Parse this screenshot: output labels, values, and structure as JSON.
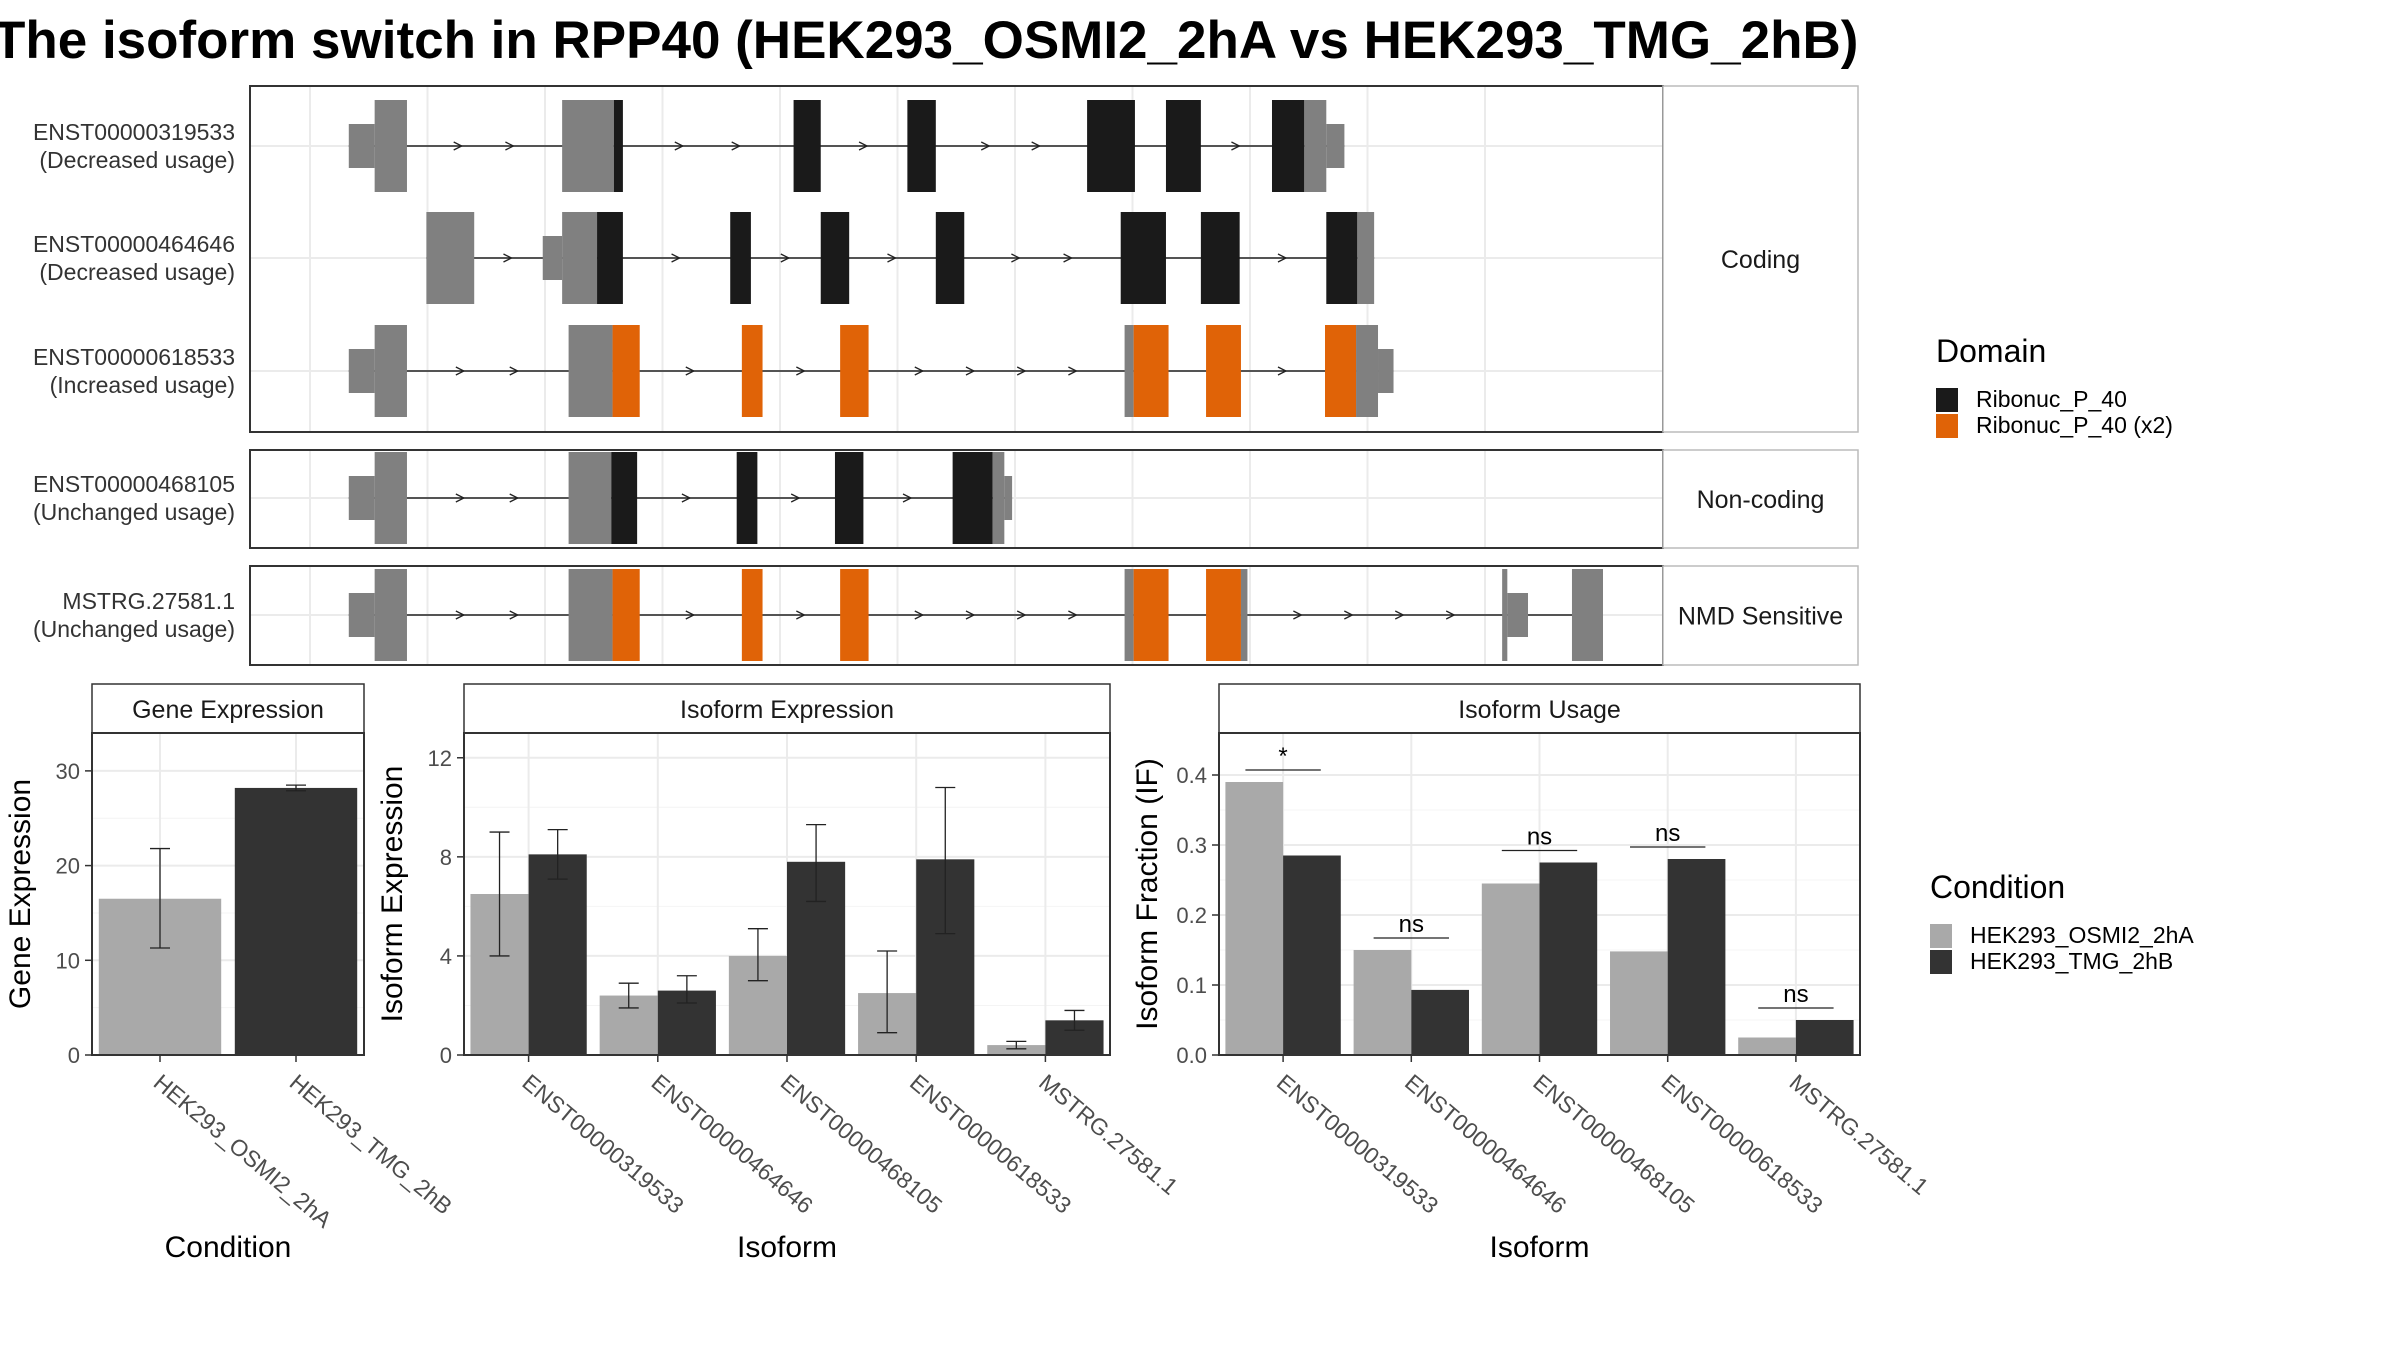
{
  "title": "The isoform switch in RPP40 (HEK293_OSMI2_2hA vs HEK293_TMG_2hB)",
  "colors": {
    "utr": "#808080",
    "domain_single": "#1a1a1a",
    "domain_x2": "#e06307",
    "intron": "#222222",
    "cond_a": "#a9a9a9",
    "cond_b": "#333333"
  },
  "structure": {
    "facets": [
      {
        "label": "Coding",
        "isoforms": [
          0,
          1,
          2
        ]
      },
      {
        "label": "Non-coding",
        "isoforms": [
          3
        ]
      },
      {
        "label": "NMD Sensitive",
        "isoforms": [
          4
        ]
      }
    ],
    "isoforms": [
      {
        "name": "ENST00000319533",
        "usage": "(Decreased usage)",
        "exons": [
          [
            0.03,
            0.05,
            "utr",
            "s"
          ],
          [
            0.05,
            0.075,
            "utr",
            "b"
          ],
          [
            0.195,
            0.235,
            "utr",
            "b"
          ],
          [
            0.235,
            0.242,
            "single",
            "b"
          ],
          [
            0.374,
            0.395,
            "single",
            "b"
          ],
          [
            0.462,
            0.484,
            "single",
            "b"
          ],
          [
            0.601,
            0.638,
            "single",
            "b"
          ],
          [
            0.662,
            0.689,
            "single",
            "b"
          ],
          [
            0.744,
            0.769,
            "single",
            "b"
          ],
          [
            0.769,
            0.786,
            "utr",
            "b"
          ],
          [
            0.786,
            0.8,
            "utr",
            "s"
          ]
        ]
      },
      {
        "name": "ENST00000464646",
        "usage": "(Decreased usage)",
        "exons": [
          [
            0.09,
            0.127,
            "utr",
            "b"
          ],
          [
            0.18,
            0.195,
            "utr",
            "s"
          ],
          [
            0.195,
            0.222,
            "utr",
            "b"
          ],
          [
            0.222,
            0.242,
            "single",
            "b"
          ],
          [
            0.325,
            0.341,
            "single",
            "b"
          ],
          [
            0.395,
            0.417,
            "single",
            "b"
          ],
          [
            0.484,
            0.506,
            "single",
            "b"
          ],
          [
            0.627,
            0.662,
            "single",
            "b"
          ],
          [
            0.689,
            0.719,
            "single",
            "b"
          ],
          [
            0.786,
            0.81,
            "single",
            "b"
          ],
          [
            0.81,
            0.823,
            "utr",
            "b"
          ]
        ]
      },
      {
        "name": "ENST00000618533",
        "usage": "(Increased usage)",
        "exons": [
          [
            0.03,
            0.05,
            "utr",
            "s"
          ],
          [
            0.05,
            0.075,
            "utr",
            "b"
          ],
          [
            0.2,
            0.234,
            "utr",
            "b"
          ],
          [
            0.234,
            0.255,
            "x2",
            "b"
          ],
          [
            0.334,
            0.35,
            "x2",
            "b"
          ],
          [
            0.41,
            0.432,
            "x2",
            "b"
          ],
          [
            0.63,
            0.637,
            "utr",
            "b"
          ],
          [
            0.637,
            0.664,
            "x2",
            "b"
          ],
          [
            0.693,
            0.72,
            "x2",
            "b"
          ],
          [
            0.785,
            0.809,
            "x2",
            "b"
          ],
          [
            0.809,
            0.826,
            "utr",
            "b"
          ],
          [
            0.826,
            0.838,
            "utr",
            "s"
          ]
        ]
      },
      {
        "name": "ENST00000468105",
        "usage": "(Unchanged usage)",
        "exons": [
          [
            0.03,
            0.05,
            "utr",
            "s"
          ],
          [
            0.05,
            0.075,
            "utr",
            "b"
          ],
          [
            0.2,
            0.233,
            "utr",
            "b"
          ],
          [
            0.233,
            0.253,
            "single",
            "b"
          ],
          [
            0.33,
            0.346,
            "single",
            "b"
          ],
          [
            0.406,
            0.428,
            "single",
            "b"
          ],
          [
            0.497,
            0.528,
            "single",
            "b"
          ],
          [
            0.528,
            0.537,
            "utr",
            "b"
          ],
          [
            0.537,
            0.543,
            "utr",
            "s"
          ]
        ]
      },
      {
        "name": "MSTRG.27581.1",
        "usage": "(Unchanged usage)",
        "exons": [
          [
            0.03,
            0.05,
            "utr",
            "s"
          ],
          [
            0.05,
            0.075,
            "utr",
            "b"
          ],
          [
            0.2,
            0.234,
            "utr",
            "b"
          ],
          [
            0.234,
            0.255,
            "x2",
            "b"
          ],
          [
            0.334,
            0.35,
            "x2",
            "b"
          ],
          [
            0.41,
            0.432,
            "x2",
            "b"
          ],
          [
            0.63,
            0.637,
            "utr",
            "b"
          ],
          [
            0.637,
            0.664,
            "x2",
            "b"
          ],
          [
            0.693,
            0.72,
            "x2",
            "b"
          ],
          [
            0.72,
            0.725,
            "utr",
            "b"
          ],
          [
            0.922,
            0.926,
            "utr",
            "b"
          ],
          [
            0.926,
            0.942,
            "utr",
            "s"
          ],
          [
            0.976,
            1.0,
            "utr",
            "b"
          ]
        ]
      }
    ]
  },
  "legend_domain": {
    "title": "Domain",
    "items": [
      {
        "label": "Ribonuc_P_40",
        "color": "#1a1a1a"
      },
      {
        "label": "Ribonuc_P_40 (x2)",
        "color": "#e06307"
      }
    ]
  },
  "legend_condition": {
    "title": "Condition",
    "items": [
      {
        "label": "HEK293_OSMI2_2hA",
        "color": "#a9a9a9"
      },
      {
        "label": "HEK293_TMG_2hB",
        "color": "#333333"
      }
    ]
  },
  "chart_data": [
    {
      "type": "bar",
      "title": "Gene Expression",
      "xlabel": "Condition",
      "ylabel": "Gene Expression",
      "ylim": [
        0,
        34
      ],
      "yticks": [
        0,
        10,
        20,
        30
      ],
      "categories": [
        "HEK293_OSMI2_2hA",
        "HEK293_TMG_2hB"
      ],
      "values": [
        16.5,
        28.2
      ],
      "errors": [
        [
          11.3,
          21.8
        ],
        [
          27.9,
          28.5
        ]
      ]
    },
    {
      "type": "bar",
      "title": "Isoform Expression",
      "xlabel": "Isoform",
      "ylabel": "Isoform Expression",
      "ylim": [
        0,
        13
      ],
      "yticks": [
        0,
        4,
        8,
        12
      ],
      "categories": [
        "ENST00000319533",
        "ENST00000464646",
        "ENST00000468105",
        "ENST00000618533",
        "MSTRG.27581.1"
      ],
      "series": [
        {
          "name": "HEK293_OSMI2_2hA",
          "values": [
            6.5,
            2.4,
            4.0,
            2.5,
            0.4
          ],
          "errors": [
            [
              4.0,
              9.0
            ],
            [
              1.9,
              2.9
            ],
            [
              3.0,
              5.1
            ],
            [
              0.9,
              4.2
            ],
            [
              0.25,
              0.55
            ]
          ]
        },
        {
          "name": "HEK293_TMG_2hB",
          "values": [
            8.1,
            2.6,
            7.8,
            7.9,
            1.4
          ],
          "errors": [
            [
              7.1,
              9.1
            ],
            [
              2.1,
              3.2
            ],
            [
              6.2,
              9.3
            ],
            [
              4.9,
              10.8
            ],
            [
              1.0,
              1.8
            ]
          ]
        }
      ]
    },
    {
      "type": "bar",
      "title": "Isoform Usage",
      "xlabel": "Isoform",
      "ylabel": "Isoform Fraction (IF)",
      "ylim": [
        0,
        0.46
      ],
      "yticks": [
        0.0,
        0.1,
        0.2,
        0.3,
        0.4
      ],
      "categories": [
        "ENST00000319533",
        "ENST00000464646",
        "ENST00000468105",
        "ENST00000618533",
        "MSTRG.27581.1"
      ],
      "series": [
        {
          "name": "HEK293_OSMI2_2hA",
          "values": [
            0.39,
            0.15,
            0.245,
            0.148,
            0.025
          ]
        },
        {
          "name": "HEK293_TMG_2hB",
          "values": [
            0.285,
            0.093,
            0.275,
            0.28,
            0.05
          ]
        }
      ],
      "significance": [
        "*",
        "ns",
        "ns",
        "ns",
        "ns"
      ]
    }
  ]
}
